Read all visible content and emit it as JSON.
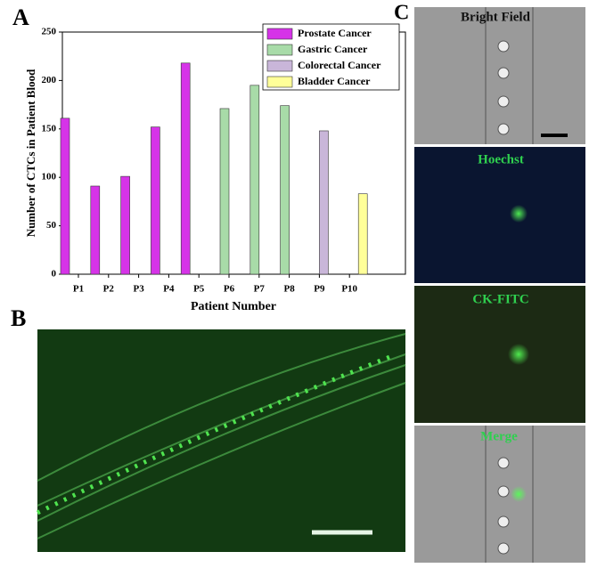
{
  "chart_data": {
    "type": "bar",
    "xlabel": "Patient Number",
    "ylabel": "Number of CTCs in Patient Blood",
    "categories": [
      "P1",
      "P2",
      "P3",
      "P4",
      "P5",
      "P6",
      "P7",
      "P8",
      "P9",
      "P10"
    ],
    "series": [
      {
        "name": "Prostate Cancer",
        "color": "#d633e8",
        "values": [
          161,
          91,
          101,
          152,
          218,
          null,
          null,
          null,
          null,
          null
        ]
      },
      {
        "name": "Gastric Cancer",
        "color": "#a8dba8",
        "values": [
          null,
          null,
          null,
          null,
          null,
          171,
          195,
          174,
          null,
          null
        ]
      },
      {
        "name": "Colorectal Cancer",
        "color": "#c9b6d9",
        "values": [
          null,
          null,
          null,
          null,
          null,
          null,
          null,
          null,
          148,
          null
        ]
      },
      {
        "name": "Bladder Cancer",
        "color": "#ffff99",
        "values": [
          null,
          null,
          null,
          null,
          null,
          null,
          null,
          null,
          null,
          83
        ]
      }
    ],
    "ylim": [
      0,
      250
    ],
    "yticks": [
      0,
      50,
      100,
      150,
      200,
      250
    ],
    "legend": "upper right"
  },
  "panels": [
    "A",
    "B",
    "C"
  ],
  "images": [
    "Bright Field",
    "Hoechst",
    "CK-FITC",
    "Merge"
  ]
}
